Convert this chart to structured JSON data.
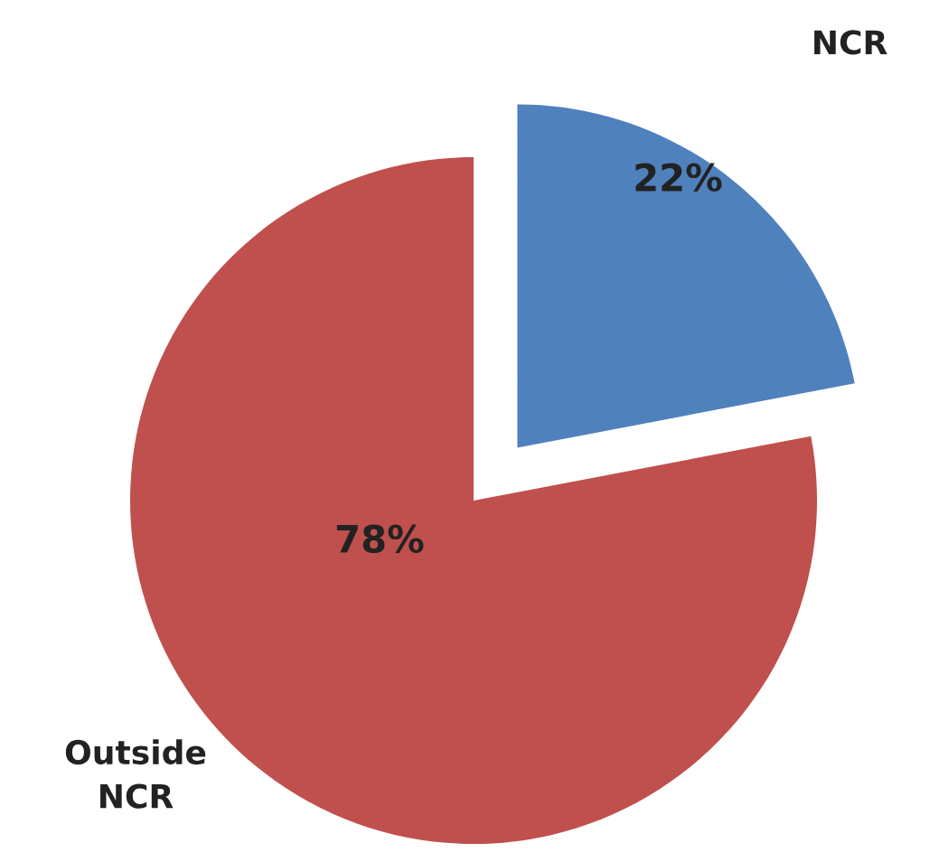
{
  "chart_data": {
    "type": "pie",
    "categories": [
      "NCR",
      "Outside\nNCR"
    ],
    "values": [
      22,
      78
    ],
    "colors": [
      "#4f81bd",
      "#c0504d"
    ],
    "value_labels": [
      "22%",
      "78%"
    ]
  }
}
